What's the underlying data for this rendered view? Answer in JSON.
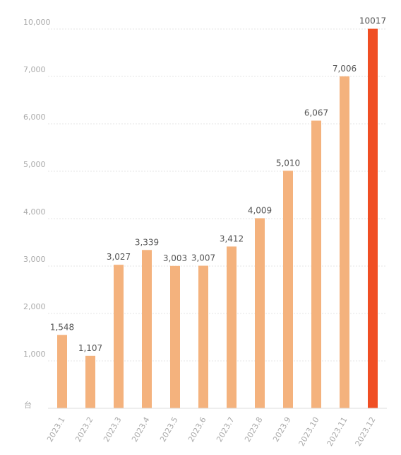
{
  "chart_data": {
    "type": "bar",
    "y_label": "台",
    "categories": [
      "2023.1",
      "2023.2",
      "2023.3",
      "2023.4",
      "2023.5",
      "2023.6",
      "2023.7",
      "2023.8",
      "2023.9",
      "2023.10",
      "2023.11",
      "2023.12"
    ],
    "values": [
      1548,
      1107,
      3027,
      3339,
      3003,
      3007,
      3412,
      4009,
      5010,
      6067,
      7006,
      10017
    ],
    "value_labels": [
      "1,548",
      "1,107",
      "3,027",
      "3,339",
      "3,003",
      "3,007",
      "3,412",
      "4,009",
      "5,010",
      "6,067",
      "7,006",
      "10017"
    ],
    "colors": [
      "#f4b27d",
      "#f4b27d",
      "#f4b27d",
      "#f4b27d",
      "#f4b27d",
      "#f4b27d",
      "#f4b27d",
      "#f4b27d",
      "#f4b27d",
      "#f4b27d",
      "#f4b27d",
      "#f04e23"
    ],
    "ylim": [
      0,
      10000
    ],
    "yticks": [
      {
        "value": 1000,
        "label": "1,000"
      },
      {
        "value": 2000,
        "label": "2,000"
      },
      {
        "value": 3000,
        "label": "3,000"
      },
      {
        "value": 4000,
        "label": "4,000"
      },
      {
        "value": 5000,
        "label": "5,000"
      },
      {
        "value": 6000,
        "label": "6,000"
      },
      {
        "value": 7000,
        "label": "7,000"
      },
      {
        "value": 10000,
        "label": "10,000"
      }
    ],
    "grid": true
  }
}
